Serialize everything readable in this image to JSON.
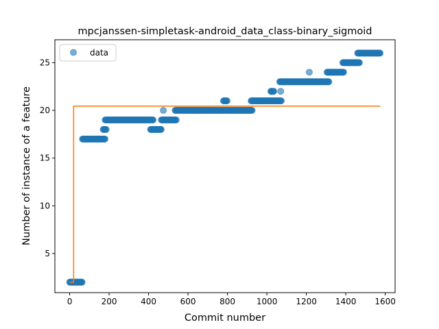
{
  "chart_data": {
    "type": "scatter",
    "title": "mpcjanssen-simpletask-android_data_class-binary_sigmoid",
    "xlabel": "Commit number",
    "ylabel": "Number of instance of a feature",
    "xlim": [
      -75,
      1650
    ],
    "ylim": [
      0.9,
      27.4
    ],
    "xticks": [
      0,
      200,
      400,
      600,
      800,
      1000,
      1200,
      1400,
      1600
    ],
    "yticks": [
      5,
      10,
      15,
      20,
      25
    ],
    "grid": false,
    "legend": {
      "placement": "top-left",
      "entries": [
        "data"
      ]
    },
    "colors": {
      "data": "#1f77b4",
      "fit": "#ff7f0e"
    },
    "series": [
      {
        "name": "data",
        "kind": "scatter",
        "segments": [
          {
            "x_start": 0,
            "x_end": 65,
            "y": 2
          },
          {
            "x_start": 65,
            "x_end": 180,
            "y": 17
          },
          {
            "x_start": 170,
            "x_end": 185,
            "y": 18
          },
          {
            "x_start": 180,
            "x_end": 425,
            "y": 19
          },
          {
            "x_start": 410,
            "x_end": 465,
            "y": 18
          },
          {
            "x_start": 465,
            "x_end": 540,
            "y": 19
          },
          {
            "x_start": 535,
            "x_end": 785,
            "y": 20
          },
          {
            "x_start": 780,
            "x_end": 800,
            "y": 21
          },
          {
            "x_start": 790,
            "x_end": 925,
            "y": 20
          },
          {
            "x_start": 920,
            "x_end": 1075,
            "y": 21
          },
          {
            "x_start": 1020,
            "x_end": 1035,
            "y": 22
          },
          {
            "x_start": 1065,
            "x_end": 1315,
            "y": 23
          },
          {
            "x_start": 1305,
            "x_end": 1390,
            "y": 24
          },
          {
            "x_start": 1385,
            "x_end": 1470,
            "y": 25
          },
          {
            "x_start": 1460,
            "x_end": 1575,
            "y": 26
          }
        ],
        "points": [
          {
            "x": 475,
            "y": 20
          },
          {
            "x": 1070,
            "y": 22
          },
          {
            "x": 1215,
            "y": 24
          }
        ]
      },
      {
        "kind": "line",
        "x": [
          0,
          20,
          20,
          1575
        ],
        "y": [
          2,
          2,
          20.45,
          20.45
        ]
      }
    ]
  }
}
